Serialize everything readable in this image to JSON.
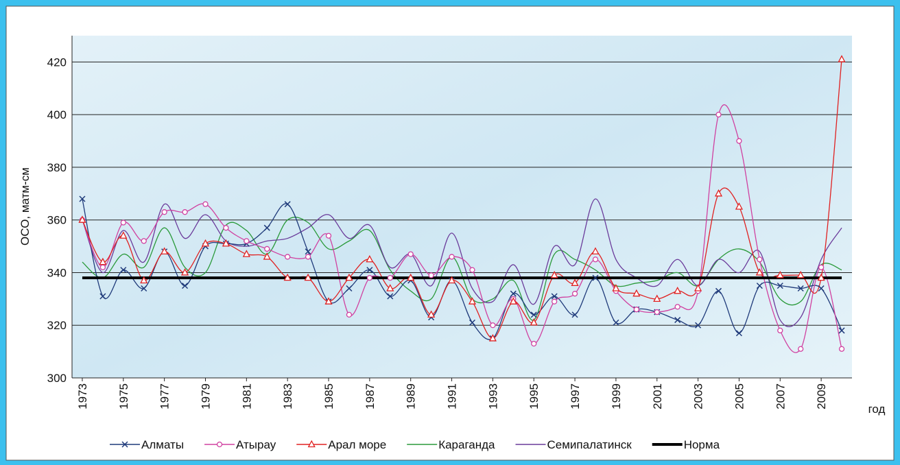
{
  "chart_data": {
    "type": "line",
    "y_label": "ОСО, матм-см",
    "x_label": "год",
    "x": [
      1973,
      1974,
      1975,
      1976,
      1977,
      1978,
      1979,
      1980,
      1981,
      1982,
      1983,
      1984,
      1985,
      1986,
      1987,
      1988,
      1989,
      1990,
      1991,
      1992,
      1993,
      1994,
      1995,
      1996,
      1997,
      1998,
      1999,
      2000,
      2001,
      2002,
      2003,
      2004,
      2005,
      2006,
      2007,
      2008,
      2009,
      2010
    ],
    "xlim": [
      1972.5,
      2010.5
    ],
    "xticks": [
      1973,
      1975,
      1977,
      1979,
      1981,
      1983,
      1985,
      1987,
      1989,
      1991,
      1993,
      1995,
      1997,
      1999,
      2001,
      2003,
      2005,
      2007,
      2009
    ],
    "ylim": [
      300,
      430
    ],
    "yticks": [
      300,
      320,
      340,
      360,
      380,
      400,
      420
    ],
    "grid": true,
    "smooth": true,
    "legend": "bottom",
    "series": [
      {
        "name": "Алматы",
        "color": "#1f3a7a",
        "marker": "x",
        "values": [
          368,
          331,
          341,
          334,
          348,
          335,
          350,
          351,
          351,
          357,
          366,
          348,
          329,
          334,
          341,
          331,
          337,
          323,
          337,
          321,
          315,
          332,
          324,
          331,
          324,
          338,
          321,
          326,
          325,
          322,
          320,
          333,
          317,
          335,
          335,
          334,
          334,
          318
        ]
      },
      {
        "name": "Атырау",
        "color": "#d040a0",
        "marker": "circle",
        "values": [
          360,
          342,
          359,
          352,
          363,
          363,
          366,
          357,
          352,
          349,
          346,
          346,
          354,
          324,
          338,
          338,
          347,
          339,
          346,
          341,
          320,
          330,
          313,
          329,
          332,
          345,
          333,
          326,
          325,
          327,
          333,
          400,
          390,
          345,
          318,
          311,
          342,
          311
        ]
      },
      {
        "name": "Арал море",
        "color": "#e02020",
        "marker": "triangle",
        "values": [
          360,
          344,
          354,
          337,
          348,
          340,
          351,
          351,
          347,
          346,
          338,
          338,
          329,
          338,
          345,
          334,
          338,
          324,
          337,
          329,
          315,
          329,
          321,
          339,
          336,
          348,
          334,
          332,
          330,
          333,
          334,
          370,
          365,
          340,
          339,
          339,
          338,
          421
        ]
      },
      {
        "name": "Караганда",
        "color": "#2a9a3a",
        "marker": "none",
        "values": [
          344,
          338,
          347,
          342,
          357,
          342,
          340,
          358,
          356,
          347,
          360,
          359,
          349,
          352,
          356,
          341,
          333,
          330,
          346,
          330,
          330,
          337,
          322,
          347,
          345,
          341,
          335,
          336,
          337,
          340,
          335,
          345,
          349,
          344,
          330,
          329,
          343,
          341
        ]
      },
      {
        "name": "Семипалатинск",
        "color": "#6a3a9a",
        "marker": "none",
        "values": [
          360,
          340,
          356,
          344,
          366,
          353,
          362,
          352,
          350,
          352,
          353,
          357,
          362,
          353,
          358,
          342,
          347,
          335,
          355,
          334,
          329,
          343,
          328,
          350,
          343,
          368,
          345,
          338,
          335,
          345,
          335,
          345,
          340,
          348,
          322,
          323,
          345,
          357
        ]
      },
      {
        "name": "Норма",
        "color": "#000000",
        "marker": "none",
        "width": 4,
        "smooth": false,
        "values": [
          338,
          338,
          338,
          338,
          338,
          338,
          338,
          338,
          338,
          338,
          338,
          338,
          338,
          338,
          338,
          338,
          338,
          338,
          338,
          338,
          338,
          338,
          338,
          338,
          338,
          338,
          338,
          338,
          338,
          338,
          338,
          338,
          338,
          338,
          338,
          338,
          338,
          338
        ]
      }
    ]
  }
}
